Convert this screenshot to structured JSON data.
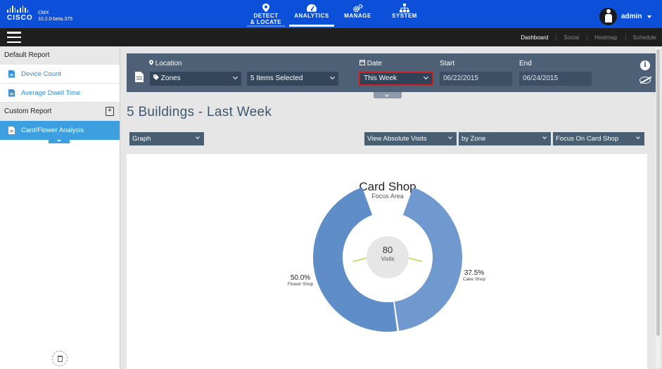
{
  "brand": {
    "logo_text": "CISCO",
    "product": "CMX",
    "version": "10.2.0-beta.375"
  },
  "nav": [
    {
      "line1": "DETECT",
      "line2": "& LOCATE",
      "icon": "location-pin-icon"
    },
    {
      "line1": "ANALYTICS",
      "line2": "",
      "icon": "speedometer-icon"
    },
    {
      "line1": "MANAGE",
      "line2": "",
      "icon": "gears-icon"
    },
    {
      "line1": "SYSTEM",
      "line2": "",
      "icon": "hierarchy-icon"
    }
  ],
  "user": {
    "name": "admin"
  },
  "subtabs": [
    "Dashboard",
    "Social",
    "Heatmap",
    "Schedule"
  ],
  "sidebar": {
    "default_header": "Default Report",
    "default_items": [
      "Device Count",
      "Average Dwell Time"
    ],
    "custom_header": "Custom Report",
    "custom_items": [
      "Card/Flower Analysis"
    ]
  },
  "filters": {
    "location_label": "Location",
    "location_value": "Zones",
    "selection_value": "5 Items Selected",
    "date_label": "Date",
    "date_value": "This Week",
    "start_label": "Start",
    "start_value": "06/22/2015",
    "end_label": "End",
    "end_value": "06/24/2015"
  },
  "report_title": "5 Buildings - Last Week",
  "controls": {
    "view_type": "Graph",
    "metric": "View Absolute Visits",
    "group_by": "by Zone",
    "focus": "Focus On Card Shop"
  },
  "colors": {
    "accent": "#0c4fd9",
    "filter_bar": "#4d6075",
    "slice_flower": "#5f8dc7",
    "slice_cake": "#7099d0",
    "highlight": "#cc2020"
  },
  "chart_data": {
    "type": "pie",
    "title": "Card Shop",
    "subtitle": "Focus Area",
    "center_value": "80",
    "center_label": "Visits",
    "categories": [
      "Flower Shop",
      "Cake Shop"
    ],
    "values": [
      50.0,
      37.5
    ],
    "value_labels": [
      "50.0%",
      "37.5%"
    ]
  }
}
